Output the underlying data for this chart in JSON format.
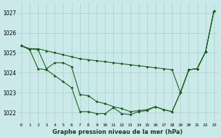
{
  "xlabel": "Graphe pression niveau de la mer (hPa)",
  "ylim": [
    1021.5,
    1027.5
  ],
  "xlim": [
    -0.5,
    23.5
  ],
  "yticks": [
    1022,
    1023,
    1024,
    1025,
    1026,
    1027
  ],
  "xticks": [
    0,
    1,
    2,
    3,
    4,
    5,
    6,
    7,
    8,
    9,
    10,
    11,
    12,
    13,
    14,
    15,
    16,
    17,
    18,
    19,
    20,
    21,
    22,
    23
  ],
  "background_color": "#cce9e9",
  "grid_color": "#a8d5d5",
  "line_color": "#1a5c1a",
  "series": [
    [
      1025.35,
      1025.2,
      1025.2,
      1025.1,
      1025.0,
      1024.9,
      1024.8,
      1024.7,
      1024.65,
      1024.6,
      1024.55,
      1024.5,
      1024.45,
      1024.4,
      1024.35,
      1024.3,
      1024.25,
      1024.2,
      1024.15,
      1023.0,
      1024.15,
      1024.2,
      1025.05,
      1027.1
    ],
    [
      1025.35,
      1025.15,
      1024.2,
      1024.15,
      1023.85,
      1023.55,
      1023.25,
      1022.05,
      1022.05,
      1021.95,
      1021.95,
      1022.25,
      1021.95,
      1021.9,
      1022.05,
      1022.1,
      1022.3,
      1022.15,
      1022.05,
      1023.0,
      1024.15,
      1024.2,
      1025.05,
      1027.1
    ],
    [
      1025.35,
      1025.2,
      1025.15,
      1024.2,
      1024.5,
      1024.5,
      1024.3,
      1022.9,
      1022.85,
      1022.55,
      1022.45,
      1022.3,
      1022.2,
      1022.05,
      1022.1,
      1022.15,
      1022.3,
      1022.15,
      1022.05,
      1023.0,
      1024.15,
      1024.2,
      1025.05,
      1027.1
    ]
  ]
}
